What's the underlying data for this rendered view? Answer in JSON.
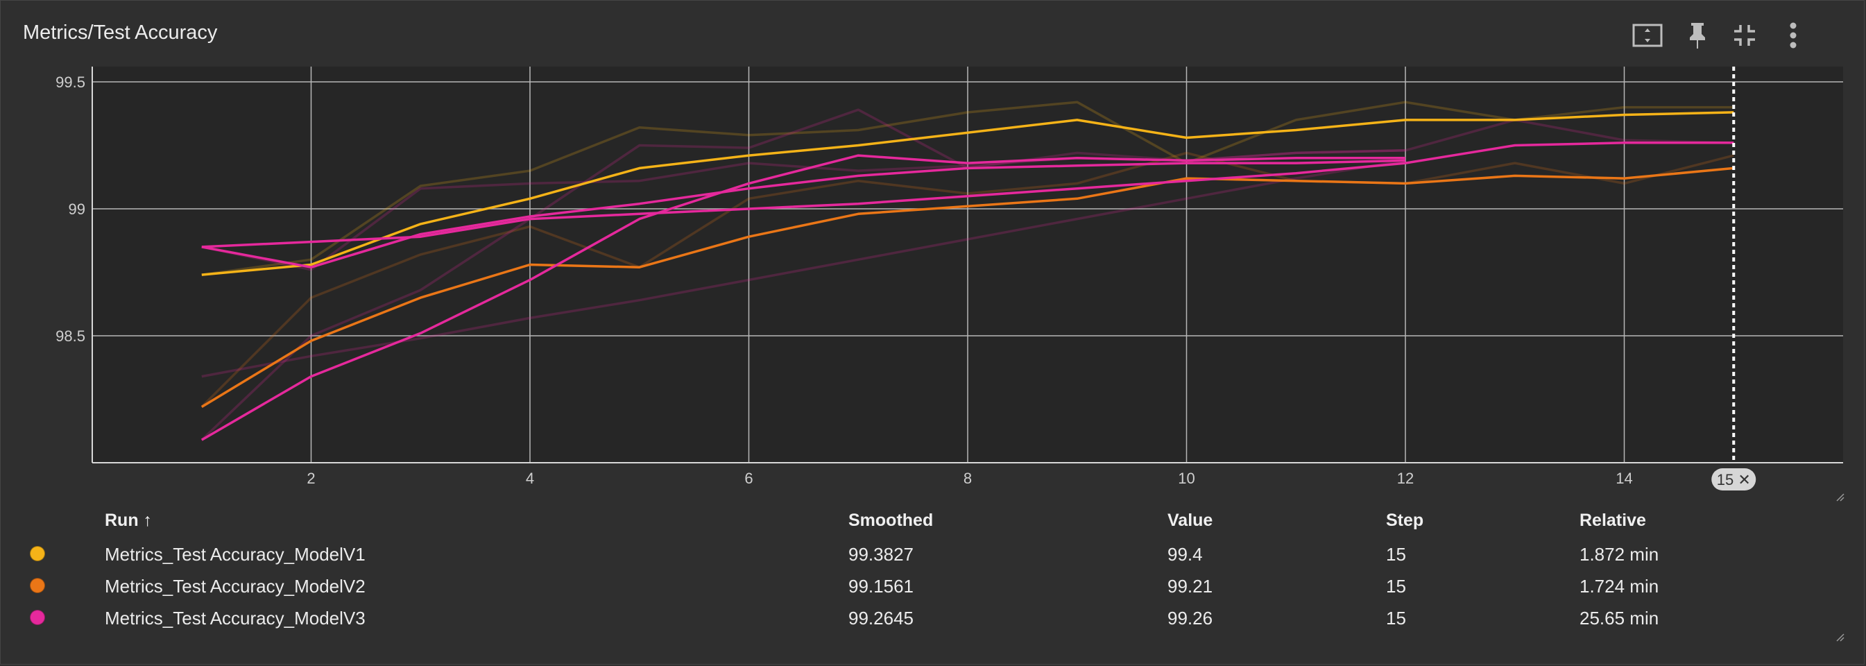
{
  "card": {
    "title": "Metrics/Test Accuracy"
  },
  "toolbar": {
    "icons": [
      "fit-domain-icon",
      "pin-icon",
      "collapse-icon",
      "more-vert-icon"
    ]
  },
  "colors": {
    "ModelV1": "#f5b318",
    "ModelV2": "#ea7617",
    "ModelV3": "#e5299c",
    "background": "#2f2f2f",
    "plot_bg": "#262626",
    "grid": "#b7b7b7"
  },
  "chart_data": {
    "type": "line",
    "title": "Metrics/Test Accuracy",
    "xlabel": "",
    "ylabel": "",
    "x_ticks": [
      2,
      4,
      6,
      8,
      10,
      12,
      14
    ],
    "y_ticks": [
      "99.5",
      "99",
      "98.5"
    ],
    "xlim": [
      0,
      16
    ],
    "ylim": [
      98.0,
      99.56
    ],
    "cursor": {
      "step": 15,
      "label": "15 ✕"
    },
    "series": [
      {
        "name": "Metrics_Test Accuracy_ModelV1",
        "color": "#f5b318",
        "x": [
          1,
          2,
          3,
          4,
          5,
          6,
          7,
          8,
          9,
          10,
          11,
          12,
          13,
          14,
          15
        ],
        "smoothed": [
          98.74,
          98.78,
          98.94,
          99.04,
          99.16,
          99.21,
          99.25,
          99.3,
          99.35,
          99.28,
          99.31,
          99.35,
          99.35,
          99.37,
          99.38
        ],
        "raw": [
          98.74,
          98.8,
          99.09,
          99.15,
          99.32,
          99.29,
          99.31,
          99.38,
          99.42,
          99.18,
          99.35,
          99.42,
          99.35,
          99.4,
          99.4
        ]
      },
      {
        "name": "Metrics_Test Accuracy_ModelV2",
        "color": "#ea7617",
        "x": [
          1,
          2,
          3,
          4,
          5,
          6,
          7,
          8,
          9,
          10,
          11,
          12,
          13,
          14,
          15
        ],
        "smoothed": [
          98.22,
          98.48,
          98.65,
          98.78,
          98.77,
          98.89,
          98.98,
          99.01,
          99.04,
          99.12,
          99.11,
          99.1,
          99.13,
          99.12,
          99.16
        ],
        "raw": [
          98.22,
          98.65,
          98.82,
          98.93,
          98.77,
          99.04,
          99.11,
          99.06,
          99.1,
          99.22,
          99.11,
          99.1,
          99.18,
          99.1,
          99.21
        ]
      },
      {
        "name": "Metrics_Test Accuracy_ModelV3",
        "color": "#e5299c",
        "x": [
          1,
          2,
          3,
          4,
          5,
          6,
          7,
          8,
          9,
          10,
          11,
          12
        ],
        "smoothed": [
          98.09,
          98.34,
          98.51,
          98.72,
          98.96,
          99.1,
          99.21,
          99.18,
          99.2,
          99.19,
          99.2,
          99.2
        ],
        "raw": [
          98.09,
          98.5,
          98.68,
          98.96,
          99.25,
          99.24,
          99.39,
          99.16,
          99.22,
          99.19,
          99.22,
          99.23
        ]
      },
      {
        "name": "Metrics_Test Accuracy_ModelV3",
        "color": "#e5299c",
        "x": [
          1,
          2,
          3,
          4,
          5,
          6,
          7,
          8,
          9,
          10,
          11,
          12,
          13,
          14,
          15
        ],
        "smoothed": [
          98.85,
          98.87,
          98.89,
          98.96,
          98.98,
          99.0,
          99.02,
          99.05,
          99.08,
          99.11,
          99.14,
          99.18,
          99.25,
          99.26,
          99.26
        ],
        "raw": [
          98.85,
          98.76,
          99.08,
          99.1,
          99.11,
          99.18,
          99.15,
          99.17,
          99.2,
          99.19,
          99.22,
          99.23,
          99.35,
          99.27,
          99.26
        ]
      },
      {
        "name": "Metrics_Test Accuracy_ModelV3",
        "color": "#e5299c",
        "x": [
          1,
          2,
          3,
          4,
          5,
          6,
          7,
          8,
          9,
          10,
          11,
          12
        ],
        "smoothed": [
          98.85,
          98.77,
          98.9,
          98.97,
          99.02,
          99.08,
          99.13,
          99.16,
          99.17,
          99.18,
          99.18,
          99.19
        ],
        "raw": [
          98.34,
          98.42,
          98.49,
          98.57,
          98.64,
          98.72,
          98.8,
          98.88,
          98.96,
          99.04,
          99.12,
          99.19
        ]
      }
    ]
  },
  "legend": {
    "headers": {
      "run": "Run ↑",
      "smoothed": "Smoothed",
      "value": "Value",
      "step": "Step",
      "relative": "Relative"
    },
    "rows": [
      {
        "color": "#f5b318",
        "run": "Metrics_Test Accuracy_ModelV1",
        "smoothed": "99.3827",
        "value": "99.4",
        "step": "15",
        "relative": "1.872 min"
      },
      {
        "color": "#ea7617",
        "run": "Metrics_Test Accuracy_ModelV2",
        "smoothed": "99.1561",
        "value": "99.21",
        "step": "15",
        "relative": "1.724 min"
      },
      {
        "color": "#e5299c",
        "run": "Metrics_Test Accuracy_ModelV3",
        "smoothed": "99.2645",
        "value": "99.26",
        "step": "15",
        "relative": "25.65 min"
      }
    ]
  }
}
